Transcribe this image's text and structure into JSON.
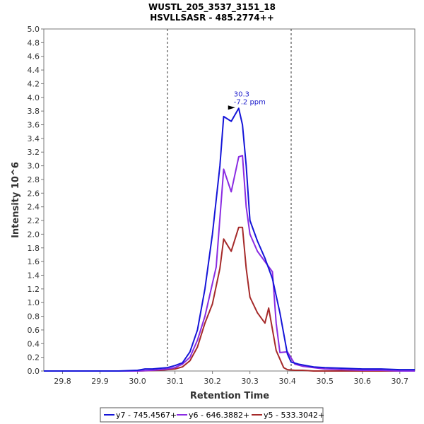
{
  "chart_data": {
    "type": "line",
    "title": "WUSTL_205_3537_3151_18",
    "subtitle": "HSVLLSASR - 485.2774++",
    "xlabel": "Retention Time",
    "ylabel": "Intensity 10^6",
    "xlim": [
      29.75,
      30.74
    ],
    "ylim": [
      0,
      5.0
    ],
    "xticks": [
      "29.8",
      "29.9",
      "30.0",
      "30.1",
      "30.2",
      "30.3",
      "30.4",
      "30.5",
      "30.6",
      "30.7"
    ],
    "yticks": [
      "0.0",
      "0.2",
      "0.4",
      "0.6",
      "0.8",
      "1.0",
      "1.2",
      "1.4",
      "1.6",
      "1.8",
      "2.0",
      "2.2",
      "2.4",
      "2.6",
      "2.8",
      "3.0",
      "3.2",
      "3.4",
      "3.6",
      "3.8",
      "4.0",
      "4.2",
      "4.4",
      "4.6",
      "4.8",
      "5.0"
    ],
    "grid": false,
    "legend_position": "bottom",
    "integration_bounds": [
      30.08,
      30.41
    ],
    "annotation": {
      "x": 30.27,
      "y": 3.84,
      "line1": "30.3",
      "line2": "-7.2 ppm"
    },
    "series": [
      {
        "name": "y7 - 745.4567+",
        "color": "#1515d8",
        "x": [
          29.75,
          29.95,
          30.0,
          30.02,
          30.04,
          30.06,
          30.08,
          30.1,
          30.12,
          30.14,
          30.16,
          30.18,
          30.2,
          30.22,
          30.23,
          30.25,
          30.27,
          30.28,
          30.29,
          30.3,
          30.32,
          30.34,
          30.36,
          30.38,
          30.4,
          30.41,
          30.43,
          30.45,
          30.47,
          30.5,
          30.55,
          30.6,
          30.65,
          30.7,
          30.74
        ],
        "y": [
          0.0,
          0.0,
          0.01,
          0.03,
          0.03,
          0.04,
          0.05,
          0.08,
          0.12,
          0.28,
          0.6,
          1.2,
          2.0,
          3.0,
          3.72,
          3.65,
          3.84,
          3.6,
          3.0,
          2.2,
          1.9,
          1.65,
          1.35,
          0.85,
          0.25,
          0.13,
          0.1,
          0.08,
          0.06,
          0.05,
          0.04,
          0.03,
          0.03,
          0.02,
          0.02
        ]
      },
      {
        "name": "y6 - 646.3882+",
        "color": "#8a2be2",
        "x": [
          29.75,
          29.95,
          30.0,
          30.04,
          30.08,
          30.1,
          30.12,
          30.14,
          30.16,
          30.18,
          30.2,
          30.21,
          30.23,
          30.25,
          30.27,
          30.28,
          30.29,
          30.3,
          30.32,
          30.34,
          30.36,
          30.37,
          30.38,
          30.4,
          30.42,
          30.44,
          30.47,
          30.5,
          30.55,
          30.6,
          30.65,
          30.7,
          30.74
        ],
        "y": [
          0.0,
          0.0,
          0.0,
          0.01,
          0.03,
          0.05,
          0.1,
          0.2,
          0.45,
          0.8,
          1.28,
          1.52,
          2.95,
          2.62,
          3.13,
          3.15,
          2.4,
          2.0,
          1.75,
          1.6,
          1.45,
          0.7,
          0.27,
          0.28,
          0.1,
          0.07,
          0.05,
          0.03,
          0.02,
          0.01,
          0.01,
          0.0,
          0.0
        ]
      },
      {
        "name": "y5 - 533.3042+",
        "color": "#a52a2a",
        "x": [
          29.75,
          29.95,
          30.0,
          30.06,
          30.08,
          30.1,
          30.12,
          30.14,
          30.16,
          30.18,
          30.2,
          30.22,
          30.23,
          30.25,
          30.27,
          30.28,
          30.29,
          30.3,
          30.32,
          30.34,
          30.35,
          30.37,
          30.39,
          30.4,
          30.42,
          30.44,
          30.47,
          30.5,
          30.55,
          30.6,
          30.65,
          30.7,
          30.74
        ],
        "y": [
          0.0,
          0.0,
          0.0,
          0.01,
          0.02,
          0.03,
          0.06,
          0.15,
          0.35,
          0.7,
          0.98,
          1.5,
          1.93,
          1.75,
          2.1,
          2.1,
          1.5,
          1.08,
          0.85,
          0.7,
          0.92,
          0.3,
          0.05,
          0.02,
          0.01,
          0.01,
          0.0,
          0.0,
          0.0,
          0.0,
          0.0,
          0.0,
          0.0
        ]
      }
    ]
  }
}
